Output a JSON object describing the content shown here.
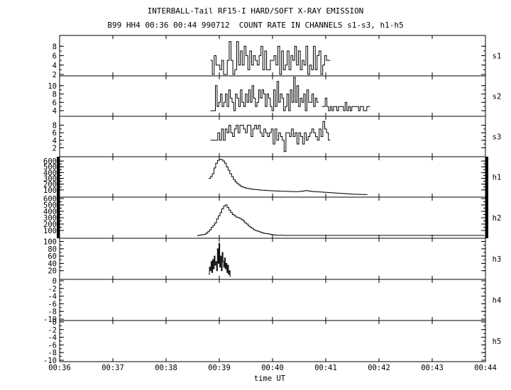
{
  "chart_data": {
    "type": "line",
    "title": "INTERBALL-Tail RF15-I HARD/SOFT X-RAY EMISSION",
    "subtitle": "B99 HH4 00:36 00:44 990712  COUNT RATE IN CHANNELS s1-s3, h1-h5",
    "xlabel": "time UT",
    "x_ticks": [
      "00:36",
      "00:37",
      "00:38",
      "00:39",
      "00:40",
      "00:41",
      "00:42",
      "00:43",
      "00:44"
    ],
    "x_range": [
      "00:36",
      "00:44"
    ],
    "panels": [
      {
        "name": "s1",
        "ylim": [
          2,
          10
        ],
        "yticks": [
          "2",
          "4",
          "6",
          "8"
        ],
        "start": "00:38:50",
        "end": "00:41:05",
        "values": [
          5,
          2,
          6,
          4,
          4,
          3,
          5,
          2,
          2,
          5,
          9,
          5,
          2,
          3,
          9,
          4,
          7,
          4,
          8,
          6,
          3,
          7,
          4,
          6,
          5,
          4,
          6,
          8,
          3,
          7,
          3,
          3,
          5,
          5,
          6,
          4,
          8,
          2,
          7,
          3,
          4,
          7,
          3,
          6,
          5,
          8,
          4,
          7,
          3,
          5,
          4,
          8,
          2,
          4,
          3,
          8,
          3,
          6,
          7,
          2,
          4,
          6,
          5,
          5
        ]
      },
      {
        "name": "s2",
        "ylim": [
          3,
          12
        ],
        "yticks": [
          "4",
          "6",
          "8",
          "10"
        ],
        "start": "00:38:50",
        "end": "00:41:50",
        "values": [
          4,
          4,
          4,
          10,
          5,
          6,
          8,
          5,
          6,
          8,
          5,
          9,
          7,
          6,
          4,
          8,
          7,
          5,
          9,
          6,
          5,
          8,
          6,
          9,
          6,
          10,
          7,
          5,
          6,
          9,
          7,
          9,
          8,
          5,
          8,
          7,
          5,
          4,
          9,
          5,
          11,
          6,
          8,
          7,
          4,
          5,
          8,
          4,
          9,
          6,
          12,
          6,
          10,
          5,
          7,
          6,
          8,
          4,
          9,
          6,
          6,
          8,
          5,
          7,
          6,
          null,
          null,
          5,
          5,
          7,
          5,
          4,
          5,
          4,
          5,
          5,
          4,
          5,
          5,
          5,
          4,
          6,
          4,
          5,
          4,
          5,
          5,
          5,
          5,
          4,
          5,
          5,
          4,
          4,
          5,
          5
        ]
      },
      {
        "name": "s3",
        "ylim": [
          0,
          10
        ],
        "yticks": [
          "2",
          "4",
          "6",
          "8"
        ],
        "start": "00:38:50",
        "end": "00:41:05",
        "values": [
          4,
          4,
          4,
          4,
          6,
          4,
          7,
          4,
          7,
          6,
          8,
          6,
          5,
          7,
          8,
          6,
          8,
          8,
          7,
          6,
          8,
          8,
          5,
          7,
          8,
          7,
          8,
          6,
          5,
          7,
          6,
          5,
          6,
          7,
          3,
          7,
          4,
          6,
          5,
          4,
          1,
          6,
          6,
          5,
          7,
          5,
          6,
          3,
          6,
          5,
          3,
          6,
          4,
          5,
          6,
          7,
          6,
          5,
          4,
          7,
          5,
          9,
          7,
          6,
          4
        ]
      },
      {
        "name": "h1",
        "ylim": [
          0,
          650
        ],
        "yticks": [
          "100",
          "200",
          "300",
          "400",
          "500",
          "600"
        ],
        "start": "00:38:48",
        "end": "00:41:47",
        "values": [
          300,
          330,
          380,
          480,
          560,
          610,
          630,
          625,
          600,
          560,
          500,
          440,
          380,
          330,
          280,
          240,
          210,
          185,
          165,
          150,
          140,
          130,
          125,
          120,
          115,
          110,
          108,
          105,
          100,
          98,
          96,
          95,
          92,
          90,
          88,
          86,
          85,
          84,
          82,
          80,
          79,
          78,
          77,
          76,
          75,
          74,
          73,
          72,
          71,
          70,
          70,
          72,
          75,
          80,
          85,
          90,
          85,
          80,
          75,
          72,
          70,
          68,
          66,
          64,
          62,
          60,
          58,
          56,
          54,
          52,
          50,
          48,
          46,
          44,
          42,
          40,
          38,
          36,
          34,
          32,
          30,
          28,
          26,
          25,
          24,
          23,
          22,
          21,
          20,
          20
        ]
      },
      {
        "name": "h2",
        "ylim": [
          0,
          600
        ],
        "yticks": [
          "100",
          "200",
          "300",
          "400",
          "500",
          "600"
        ],
        "start": "00:38:35",
        "end": "00:43:59",
        "values": [
          20,
          25,
          30,
          35,
          40,
          60,
          80,
          110,
          150,
          180,
          220,
          280,
          330,
          380,
          440,
          480,
          500,
          460,
          420,
          380,
          350,
          330,
          310,
          300,
          290,
          270,
          250,
          220,
          200,
          170,
          150,
          130,
          110,
          100,
          90,
          80,
          70,
          60,
          55,
          50,
          45,
          40,
          35,
          30,
          28,
          26,
          25,
          24,
          23,
          22,
          22,
          22,
          22,
          22,
          22,
          22,
          22,
          22,
          22,
          22,
          22,
          22,
          22,
          22,
          22,
          22,
          22,
          22,
          22,
          22,
          22,
          22,
          22,
          22,
          22,
          22,
          22,
          22,
          22,
          22,
          22,
          22,
          22,
          22,
          22,
          22,
          22,
          22,
          22,
          22,
          22,
          22,
          22,
          22,
          22,
          22,
          22,
          22,
          22,
          22,
          22,
          22,
          22,
          22,
          22,
          22,
          22,
          22,
          22,
          22,
          22,
          22,
          22,
          22,
          22,
          22,
          22,
          22,
          22,
          22,
          22,
          22,
          22,
          22,
          22,
          22,
          22,
          22,
          22,
          22,
          22,
          22,
          22,
          22,
          22,
          22,
          22,
          22,
          22,
          22,
          22,
          22,
          22,
          22,
          22,
          22,
          22,
          22,
          22,
          22,
          22,
          22,
          22,
          22,
          22,
          22,
          22,
          22,
          22,
          22,
          22,
          22,
          22
        ]
      },
      {
        "name": "h3",
        "ylim": [
          0,
          105
        ],
        "yticks": [
          "20",
          "40",
          "60",
          "80",
          "100"
        ],
        "start": "00:38:48",
        "end": "00:39:13",
        "values": [
          10,
          30,
          20,
          45,
          15,
          50,
          25,
          60,
          35,
          45,
          20,
          80,
          40,
          95,
          30,
          60,
          20,
          70,
          45,
          30,
          55,
          25,
          40,
          15,
          35,
          10,
          20,
          5
        ]
      },
      {
        "name": "h4",
        "ylim": [
          -10,
          0
        ],
        "yticks": [
          "-10",
          "-8",
          "-6",
          "-4",
          "-2",
          "0"
        ],
        "values": []
      },
      {
        "name": "h5",
        "ylim": [
          -10,
          0
        ],
        "yticks": [
          "-10",
          "-8",
          "-6",
          "-4",
          "-2",
          "0"
        ],
        "values": []
      }
    ]
  }
}
